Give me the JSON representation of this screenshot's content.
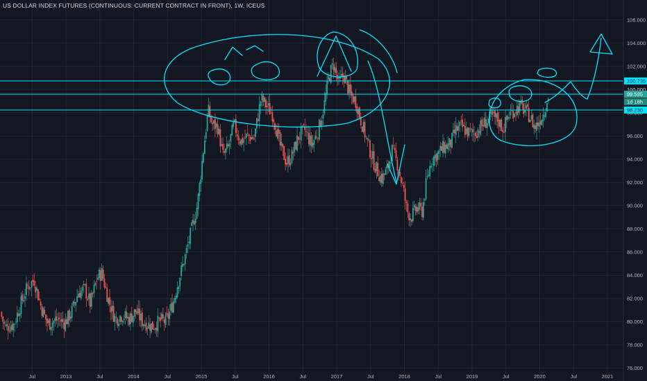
{
  "header": {
    "title": "US DOLLAR INDEX FUTURES (CONTINUOUS: CURRENT CONTRACT IN FRONT), 1W, ICEUS"
  },
  "colors": {
    "background": "#131722",
    "grid": "#232632",
    "up": "#26a69a",
    "down": "#ef5350",
    "drawing": "#00e5ff",
    "axis_text": "#b2b5be"
  },
  "chart_data": {
    "type": "candlestick",
    "title": "US DOLLAR INDEX FUTURES (CONTINUOUS: CURRENT CONTRACT IN FRONT), 1W, ICEUS",
    "interval": "1W",
    "ylim": [
      75.6,
      106.6
    ],
    "y_ticks": [
      "76.000",
      "78.000",
      "80.000",
      "82.000",
      "84.000",
      "86.000",
      "88.000",
      "90.000",
      "92.000",
      "94.000",
      "96.000",
      "98.000",
      "100.000",
      "102.000",
      "104.000",
      "106.000"
    ],
    "x_ticks": [
      {
        "label": "Jul",
        "t": 2012.5
      },
      {
        "label": "2013",
        "t": 2013.0
      },
      {
        "label": "Jul",
        "t": 2013.5
      },
      {
        "label": "2014",
        "t": 2014.0
      },
      {
        "label": "Jul",
        "t": 2014.5
      },
      {
        "label": "2015",
        "t": 2015.0
      },
      {
        "label": "Jul",
        "t": 2015.5
      },
      {
        "label": "2016",
        "t": 2016.0
      },
      {
        "label": "Jul",
        "t": 2016.5
      },
      {
        "label": "2017",
        "t": 2017.0
      },
      {
        "label": "Jul",
        "t": 2017.5
      },
      {
        "label": "2018",
        "t": 2018.0
      },
      {
        "label": "Jul",
        "t": 2018.5
      },
      {
        "label": "2019",
        "t": 2019.0
      },
      {
        "label": "Jul",
        "t": 2019.5
      },
      {
        "label": "2020",
        "t": 2020.0
      },
      {
        "label": "Jul",
        "t": 2020.5
      },
      {
        "label": "2021",
        "t": 2021.0
      }
    ],
    "price_path": [
      [
        2012.05,
        80.8
      ],
      [
        2012.12,
        79.5
      ],
      [
        2012.25,
        79.8
      ],
      [
        2012.35,
        81.5
      ],
      [
        2012.45,
        83.0
      ],
      [
        2012.55,
        83.6
      ],
      [
        2012.65,
        81.3
      ],
      [
        2012.75,
        79.8
      ],
      [
        2012.9,
        80.2
      ],
      [
        2013.0,
        79.9
      ],
      [
        2013.1,
        80.8
      ],
      [
        2013.2,
        82.5
      ],
      [
        2013.3,
        82.8
      ],
      [
        2013.38,
        81.5
      ],
      [
        2013.48,
        83.8
      ],
      [
        2013.55,
        84.2
      ],
      [
        2013.65,
        81.8
      ],
      [
        2013.75,
        80.2
      ],
      [
        2013.85,
        80.6
      ],
      [
        2013.95,
        80.2
      ],
      [
        2014.05,
        80.9
      ],
      [
        2014.15,
        80.0
      ],
      [
        2014.3,
        79.6
      ],
      [
        2014.42,
        80.1
      ],
      [
        2014.5,
        80.0
      ],
      [
        2014.6,
        81.6
      ],
      [
        2014.68,
        83.5
      ],
      [
        2014.78,
        85.6
      ],
      [
        2014.88,
        88.0
      ],
      [
        2014.96,
        90.0
      ],
      [
        2015.05,
        94.8
      ],
      [
        2015.12,
        98.2
      ],
      [
        2015.18,
        97.0
      ],
      [
        2015.26,
        96.8
      ],
      [
        2015.34,
        94.3
      ],
      [
        2015.42,
        95.0
      ],
      [
        2015.5,
        97.0
      ],
      [
        2015.6,
        95.5
      ],
      [
        2015.7,
        96.0
      ],
      [
        2015.8,
        95.8
      ],
      [
        2015.9,
        99.2
      ],
      [
        2015.97,
        98.7
      ],
      [
        2016.08,
        97.8
      ],
      [
        2016.18,
        95.2
      ],
      [
        2016.28,
        93.7
      ],
      [
        2016.36,
        94.3
      ],
      [
        2016.45,
        95.9
      ],
      [
        2016.55,
        96.5
      ],
      [
        2016.65,
        95.2
      ],
      [
        2016.75,
        96.5
      ],
      [
        2016.83,
        98.5
      ],
      [
        2016.9,
        101.0
      ],
      [
        2016.97,
        102.2
      ],
      [
        2017.05,
        100.5
      ],
      [
        2017.12,
        101.3
      ],
      [
        2017.22,
        99.5
      ],
      [
        2017.3,
        99.0
      ],
      [
        2017.38,
        97.3
      ],
      [
        2017.48,
        95.3
      ],
      [
        2017.58,
        93.5
      ],
      [
        2017.68,
        92.3
      ],
      [
        2017.76,
        93.0
      ],
      [
        2017.84,
        94.8
      ],
      [
        2017.92,
        93.5
      ],
      [
        2018.0,
        91.5
      ],
      [
        2018.06,
        89.5
      ],
      [
        2018.12,
        89.0
      ],
      [
        2018.2,
        89.8
      ],
      [
        2018.28,
        89.5
      ],
      [
        2018.34,
        91.8
      ],
      [
        2018.42,
        94.0
      ],
      [
        2018.52,
        94.5
      ],
      [
        2018.6,
        95.0
      ],
      [
        2018.7,
        95.3
      ],
      [
        2018.78,
        96.5
      ],
      [
        2018.86,
        96.8
      ],
      [
        2018.96,
        96.3
      ],
      [
        2019.05,
        96.2
      ],
      [
        2019.15,
        96.8
      ],
      [
        2019.24,
        97.3
      ],
      [
        2019.32,
        97.6
      ],
      [
        2019.4,
        97.4
      ],
      [
        2019.48,
        96.6
      ],
      [
        2019.56,
        97.8
      ],
      [
        2019.64,
        98.2
      ],
      [
        2019.72,
        98.6
      ],
      [
        2019.8,
        98.2
      ],
      [
        2019.87,
        97.7
      ],
      [
        2019.95,
        96.7
      ],
      [
        2020.02,
        97.4
      ],
      [
        2020.08,
        98.0
      ],
      [
        2020.13,
        99.2
      ]
    ],
    "horizontal_levels": [
      {
        "value": 100.735,
        "label": "100.735"
      },
      {
        "value": 99.595,
        "label": "99.595"
      },
      {
        "value": 98.23,
        "label": "98.230"
      }
    ],
    "price_tags": [
      {
        "label": "100.735",
        "kind": "level"
      },
      {
        "label": "100.000",
        "kind": "axis"
      },
      {
        "label": "99.595",
        "kind": "current"
      },
      {
        "label": "1d 18h",
        "kind": "countdown"
      },
      {
        "label": "98.230",
        "kind": "level"
      }
    ]
  }
}
